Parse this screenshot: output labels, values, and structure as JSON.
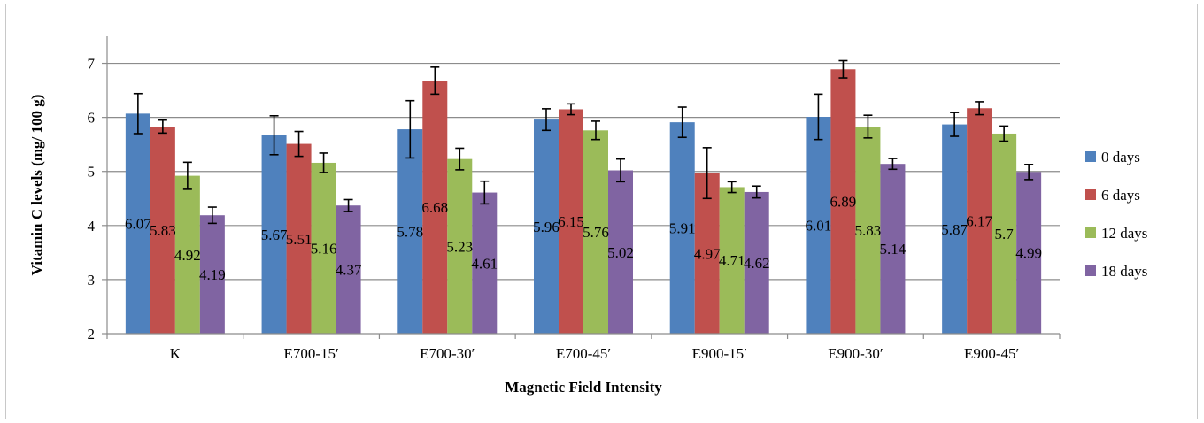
{
  "chart_data": {
    "type": "bar",
    "xlabel": "Magnetic Field Intensity",
    "ylabel": "Vitamin C levels  (mg/ 100 g)",
    "ylim": [
      2,
      7.5
    ],
    "yticks": [
      2,
      3,
      4,
      5,
      6,
      7
    ],
    "grid": true,
    "legend_position": "right",
    "categories": [
      "K",
      "E700-15′",
      "E700-30′",
      "E700-45′",
      "E900-15′",
      "E900-30′",
      "E900-45′"
    ],
    "series": [
      {
        "name": "0 days",
        "color": "#4f81bd",
        "values": [
          6.07,
          5.67,
          5.78,
          5.96,
          5.91,
          6.01,
          5.87
        ],
        "labels": [
          "6.07",
          "5.67",
          "5.78",
          "5.96",
          "5.91",
          "6.01",
          "5.87"
        ],
        "errors": [
          0.37,
          0.36,
          0.53,
          0.2,
          0.28,
          0.42,
          0.22
        ]
      },
      {
        "name": "6 days",
        "color": "#c0504d",
        "values": [
          5.83,
          5.51,
          6.68,
          6.15,
          4.97,
          6.89,
          6.17
        ],
        "labels": [
          "5.83",
          "5.51",
          "6.68",
          "6.15",
          "4.97",
          "6.89",
          "6.17"
        ],
        "errors": [
          0.12,
          0.23,
          0.25,
          0.1,
          0.47,
          0.16,
          0.12
        ]
      },
      {
        "name": "12 days",
        "color": "#9bbb59",
        "values": [
          4.92,
          5.16,
          5.23,
          5.76,
          4.71,
          5.83,
          5.7
        ],
        "labels": [
          "4.92",
          "5.16",
          "5.23",
          "5.76",
          "4.71",
          "5.83",
          "5.7"
        ],
        "errors": [
          0.25,
          0.18,
          0.2,
          0.17,
          0.1,
          0.21,
          0.14
        ]
      },
      {
        "name": "18 days",
        "color": "#8064a2",
        "values": [
          4.19,
          4.37,
          4.61,
          5.02,
          4.62,
          5.14,
          4.99
        ],
        "labels": [
          "4.19",
          "4.37",
          "4.61",
          "5.02",
          "4.62",
          "5.14",
          "4.99"
        ],
        "errors": [
          0.15,
          0.11,
          0.21,
          0.21,
          0.11,
          0.1,
          0.14
        ]
      }
    ]
  }
}
